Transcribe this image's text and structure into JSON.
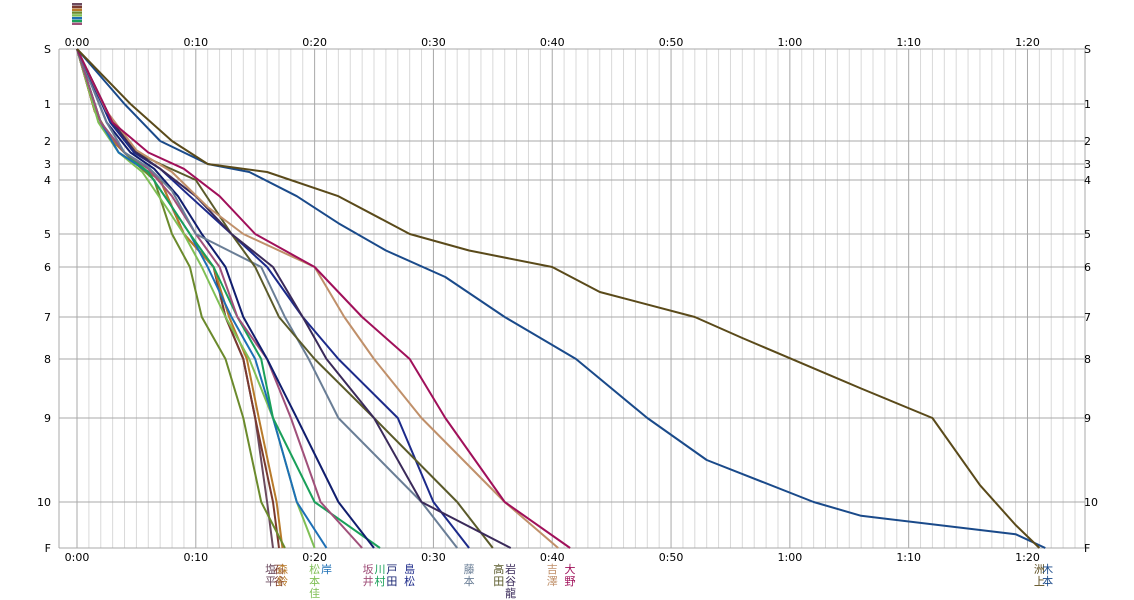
{
  "chart_data": {
    "type": "line",
    "title": "",
    "xlabel": "",
    "ylabel": "",
    "x_unit": "minutes",
    "xlim": [
      0,
      84
    ],
    "x_ticks": [
      {
        "v": 0,
        "label": "0:00"
      },
      {
        "v": 10,
        "label": "0:10"
      },
      {
        "v": 20,
        "label": "0:20"
      },
      {
        "v": 30,
        "label": "0:30"
      },
      {
        "v": 40,
        "label": "0:40"
      },
      {
        "v": 50,
        "label": "0:50"
      },
      {
        "v": 60,
        "label": "1:00"
      },
      {
        "v": 70,
        "label": "1:10"
      },
      {
        "v": 80,
        "label": "1:20"
      }
    ],
    "y_ticks": [
      {
        "label": "S",
        "pos": 0
      },
      {
        "label": "1",
        "pos": 1
      },
      {
        "label": "2",
        "pos": 2
      },
      {
        "label": "3",
        "pos": 3
      },
      {
        "label": "4",
        "pos": 4
      },
      {
        "label": "5",
        "pos": 5
      },
      {
        "label": "6",
        "pos": 6
      },
      {
        "label": "7",
        "pos": 7
      },
      {
        "label": "8",
        "pos": 8
      },
      {
        "label": "9",
        "pos": 9
      },
      {
        "label": "10",
        "pos": 10
      },
      {
        "label": "F",
        "pos": 11
      }
    ],
    "grid": true,
    "series": [
      {
        "color": "#6b4a5e",
        "points": [
          [
            0,
            0
          ],
          [
            1.5,
            1.2
          ],
          [
            3,
            2
          ],
          [
            5,
            3
          ],
          [
            7,
            4
          ],
          [
            9,
            5
          ],
          [
            11.5,
            6
          ],
          [
            12.5,
            7
          ],
          [
            14,
            8
          ],
          [
            15,
            9
          ],
          [
            16,
            10
          ],
          [
            16.5,
            11
          ]
        ]
      },
      {
        "color": "#7a3a30",
        "points": [
          [
            0,
            0
          ],
          [
            1.5,
            1.2
          ],
          [
            3,
            2
          ],
          [
            5,
            3
          ],
          [
            7,
            4
          ],
          [
            9,
            5
          ],
          [
            11.5,
            6
          ],
          [
            12.5,
            7
          ],
          [
            14,
            8
          ],
          [
            15,
            9
          ],
          [
            16.5,
            10
          ],
          [
            17,
            11
          ]
        ]
      },
      {
        "color": "#b87a2a",
        "points": [
          [
            0,
            0
          ],
          [
            1.5,
            1.2
          ],
          [
            3,
            2
          ],
          [
            5,
            3
          ],
          [
            7,
            4
          ],
          [
            9,
            5
          ],
          [
            11.5,
            6
          ],
          [
            12.8,
            7
          ],
          [
            14.3,
            8
          ],
          [
            15.3,
            9
          ],
          [
            16.8,
            10
          ],
          [
            17.3,
            11
          ]
        ]
      },
      {
        "color": "#6b8a2c",
        "points": [
          [
            0,
            0
          ],
          [
            2,
            1.5
          ],
          [
            3.5,
            2.5
          ],
          [
            5,
            3
          ],
          [
            6.5,
            4
          ],
          [
            8,
            5
          ],
          [
            9.5,
            6
          ],
          [
            10.5,
            7
          ],
          [
            12.5,
            8
          ],
          [
            14,
            9
          ],
          [
            15.5,
            10
          ],
          [
            17.5,
            11
          ]
        ]
      },
      {
        "color": "#7fbf55",
        "points": [
          [
            0,
            0
          ],
          [
            1.8,
            1.5
          ],
          [
            3.5,
            2.5
          ],
          [
            5.5,
            3.5
          ],
          [
            7.5,
            4.5
          ],
          [
            9,
            5
          ],
          [
            10.5,
            6
          ],
          [
            12.5,
            7
          ],
          [
            14.5,
            8
          ],
          [
            16.5,
            9
          ],
          [
            18.5,
            10
          ],
          [
            20,
            11
          ]
        ]
      },
      {
        "color": "#1d6fb5",
        "points": [
          [
            0,
            0
          ],
          [
            2,
            1.5
          ],
          [
            3.5,
            2.5
          ],
          [
            6,
            3.5
          ],
          [
            8,
            4.5
          ],
          [
            9.5,
            5
          ],
          [
            11,
            6
          ],
          [
            13,
            7
          ],
          [
            15,
            8
          ],
          [
            16.5,
            9
          ],
          [
            18.5,
            10
          ],
          [
            21,
            11
          ]
        ]
      },
      {
        "color": "#1aa05a",
        "points": [
          [
            0,
            0
          ],
          [
            2,
            1.5
          ],
          [
            4,
            2.5
          ],
          [
            6,
            3.5
          ],
          [
            8,
            4.5
          ],
          [
            9.5,
            5
          ],
          [
            11.5,
            6
          ],
          [
            13.5,
            7
          ],
          [
            15.5,
            8
          ],
          [
            16.5,
            9
          ],
          [
            20,
            10
          ],
          [
            25.5,
            11
          ]
        ]
      },
      {
        "color": "#a0507a",
        "points": [
          [
            0,
            0
          ],
          [
            2,
            1.5
          ],
          [
            4,
            2.5
          ],
          [
            6,
            3.3
          ],
          [
            8,
            4.3
          ],
          [
            10,
            5
          ],
          [
            12,
            6
          ],
          [
            13.5,
            7
          ],
          [
            16,
            8
          ],
          [
            18,
            9
          ],
          [
            20.5,
            10
          ],
          [
            24,
            11
          ]
        ]
      },
      {
        "color": "#111e6e",
        "points": [
          [
            0,
            0
          ],
          [
            2.5,
            1.5
          ],
          [
            4.5,
            2.5
          ],
          [
            6.5,
            3.3
          ],
          [
            8.5,
            4.3
          ],
          [
            10.5,
            5
          ],
          [
            12.5,
            6
          ],
          [
            14,
            7
          ],
          [
            16,
            8
          ],
          [
            18.5,
            9
          ],
          [
            22,
            10
          ],
          [
            25,
            11
          ]
        ]
      },
      {
        "color": "#6a7e96",
        "points": [
          [
            0,
            0
          ],
          [
            2.5,
            1.5
          ],
          [
            4,
            2.5
          ],
          [
            6,
            3.2
          ],
          [
            8,
            4.2
          ],
          [
            10,
            5
          ],
          [
            15.5,
            6
          ],
          [
            17.5,
            7
          ],
          [
            19.5,
            8
          ],
          [
            22,
            9
          ],
          [
            29,
            10
          ],
          [
            32,
            11
          ]
        ]
      },
      {
        "color": "#1c2a8a",
        "points": [
          [
            0,
            0
          ],
          [
            2.8,
            1.5
          ],
          [
            4.8,
            2.5
          ],
          [
            7,
            3.3
          ],
          [
            9.5,
            4.3
          ],
          [
            13,
            5
          ],
          [
            16,
            6
          ],
          [
            19,
            7
          ],
          [
            22,
            8
          ],
          [
            27,
            9
          ],
          [
            30,
            10
          ],
          [
            33,
            11
          ]
        ]
      },
      {
        "color": "#5a5a2a",
        "points": [
          [
            0,
            0
          ],
          [
            3,
            1.5
          ],
          [
            5,
            2.5
          ],
          [
            7,
            3
          ],
          [
            10,
            4
          ],
          [
            13,
            5
          ],
          [
            15,
            6
          ],
          [
            17,
            7
          ],
          [
            20,
            8
          ],
          [
            25,
            9
          ],
          [
            32,
            10
          ],
          [
            35,
            11
          ]
        ]
      },
      {
        "color": "#3a2a5a",
        "points": [
          [
            0,
            0
          ],
          [
            3,
            1.5
          ],
          [
            5,
            2.5
          ],
          [
            7,
            3.3
          ],
          [
            10,
            4.3
          ],
          [
            13,
            5
          ],
          [
            16.5,
            6
          ],
          [
            19,
            7
          ],
          [
            21,
            8
          ],
          [
            25,
            9
          ],
          [
            29,
            10
          ],
          [
            36.5,
            11
          ]
        ]
      },
      {
        "color": "#c0906a",
        "points": [
          [
            0,
            0
          ],
          [
            2.5,
            1.2
          ],
          [
            5,
            2.4
          ],
          [
            8,
            3.5
          ],
          [
            11,
            4.5
          ],
          [
            14,
            5
          ],
          [
            20,
            6
          ],
          [
            22.5,
            7
          ],
          [
            25,
            8
          ],
          [
            29,
            9
          ],
          [
            36,
            10
          ],
          [
            40.5,
            11
          ]
        ]
      },
      {
        "color": "#a0105a",
        "points": [
          [
            0,
            0
          ],
          [
            3,
            1.5
          ],
          [
            6,
            2.5
          ],
          [
            9,
            3.3
          ],
          [
            12,
            4.3
          ],
          [
            15,
            5
          ],
          [
            20,
            6
          ],
          [
            24,
            7
          ],
          [
            28,
            8
          ],
          [
            31,
            9
          ],
          [
            36,
            10
          ],
          [
            41.5,
            11
          ]
        ]
      },
      {
        "color": "#1a4a8a",
        "points": [
          [
            0,
            0
          ],
          [
            4,
            1
          ],
          [
            7,
            2
          ],
          [
            11,
            3
          ],
          [
            14.5,
            3.5
          ],
          [
            18.5,
            4.3
          ],
          [
            22,
            4.8
          ],
          [
            26,
            5.5
          ],
          [
            31,
            6.2
          ],
          [
            36,
            7
          ],
          [
            39,
            7.5
          ],
          [
            42,
            8
          ],
          [
            48,
            9
          ],
          [
            53,
            9.5
          ],
          [
            62,
            10
          ],
          [
            66,
            10.3
          ],
          [
            79,
            10.7
          ],
          [
            81.5,
            11
          ]
        ]
      },
      {
        "color": "#5a4a1a",
        "points": [
          [
            0,
            0
          ],
          [
            4.5,
            1
          ],
          [
            8,
            2
          ],
          [
            11,
            3
          ],
          [
            16,
            3.5
          ],
          [
            22,
            4.3
          ],
          [
            28,
            5
          ],
          [
            33,
            5.5
          ],
          [
            40,
            6
          ],
          [
            44,
            6.5
          ],
          [
            52,
            7
          ],
          [
            56,
            7.5
          ],
          [
            66,
            8.5
          ],
          [
            72,
            9
          ],
          [
            76,
            9.8
          ],
          [
            79,
            10.5
          ],
          [
            81,
            11
          ]
        ]
      }
    ],
    "runner_labels": [
      {
        "x": 16.3,
        "lines": [
          "塩",
          "平"
        ],
        "color": "#6b4a5e"
      },
      {
        "x": 17.0,
        "lines": [
          "石",
          "谷"
        ],
        "color": "#7a3a30"
      },
      {
        "x": 17.3,
        "lines": [
          "森",
          "鈴"
        ],
        "color": "#b87a2a"
      },
      {
        "x": 20.0,
        "lines": [
          "松",
          "本",
          "佳"
        ],
        "color": "#7fbf55"
      },
      {
        "x": 21.0,
        "lines": [
          "岸",
          ""
        ],
        "color": "#1d6fb5"
      },
      {
        "x": 24.5,
        "lines": [
          "坂",
          "井"
        ],
        "color": "#a0507a"
      },
      {
        "x": 25.5,
        "lines": [
          "川",
          "村"
        ],
        "color": "#1aa05a"
      },
      {
        "x": 26.5,
        "lines": [
          "戸",
          "田"
        ],
        "color": "#111e6e"
      },
      {
        "x": 28.0,
        "lines": [
          "島",
          "松"
        ],
        "color": "#1c2a8a"
      },
      {
        "x": 33.0,
        "lines": [
          "藤",
          "本"
        ],
        "color": "#6a7e96"
      },
      {
        "x": 35.5,
        "lines": [
          "高",
          "田"
        ],
        "color": "#5a5a2a"
      },
      {
        "x": 36.5,
        "lines": [
          "岩",
          "谷",
          "龍"
        ],
        "color": "#3a2a5a"
      },
      {
        "x": 40.0,
        "lines": [
          "吉",
          "澤"
        ],
        "color": "#c0906a"
      },
      {
        "x": 41.5,
        "lines": [
          "大",
          "野"
        ],
        "color": "#a0105a"
      },
      {
        "x": 81.0,
        "lines": [
          "洲",
          "上"
        ],
        "color": "#5a4a1a"
      },
      {
        "x": 81.7,
        "lines": [
          "木",
          "本"
        ],
        "color": "#1a4a8a"
      }
    ]
  }
}
